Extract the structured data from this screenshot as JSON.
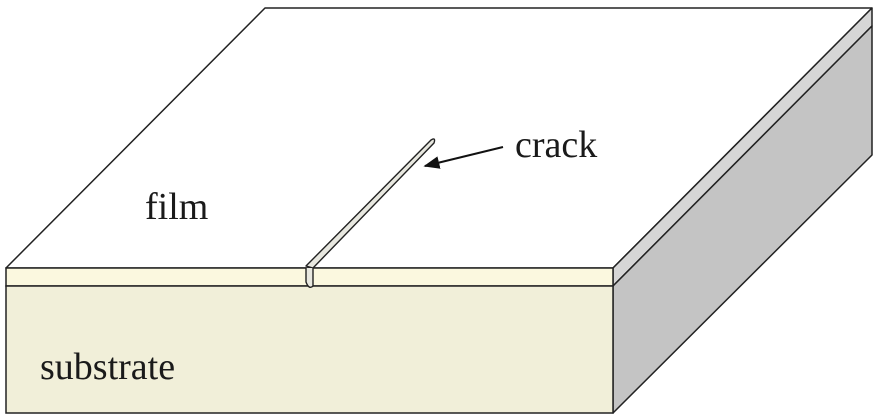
{
  "labels": {
    "film": "film",
    "crack": "crack",
    "substrate": "substrate"
  },
  "colors": {
    "film_top": "#ffffff",
    "film_front": "#fbf8df",
    "film_side": "#d6d6d6",
    "substrate_front": "#f1efd9",
    "substrate_side": "#c4c4c4",
    "crack_fill": "#e8e8e0",
    "outline": "#222222"
  }
}
